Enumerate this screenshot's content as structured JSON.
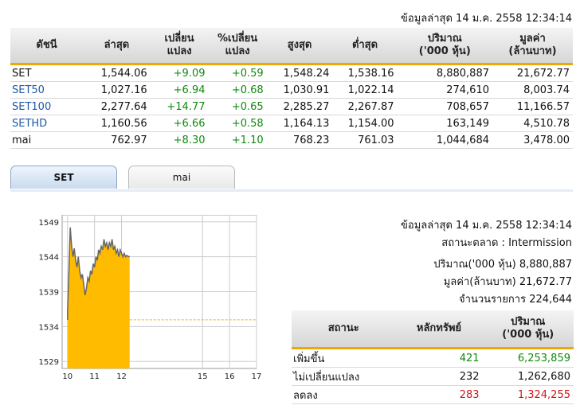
{
  "header": {
    "timestamp": "ข้อมูลล่าสุด 14 ม.ค. 2558 12:34:14"
  },
  "index_table": {
    "columns": [
      [
        "ดัชนี"
      ],
      [
        "ล่าสุด"
      ],
      [
        "เปลี่ยน",
        "แปลง"
      ],
      [
        "%เปลี่ยน",
        "แปลง"
      ],
      [
        "สูงสุด"
      ],
      [
        "ต่ำสุด"
      ],
      [
        "ปริมาณ",
        "('000 หุ้น)"
      ],
      [
        "มูลค่า",
        "(ล้านบาท)"
      ]
    ],
    "rows": [
      {
        "name": "SET",
        "last": "1,544.06",
        "change": "+9.09",
        "pct": "+0.59",
        "high": "1,548.24",
        "low": "1,538.16",
        "volume": "8,880,887",
        "value": "21,672.77"
      },
      {
        "name": "SET50",
        "last": "1,027.16",
        "change": "+6.94",
        "pct": "+0.68",
        "high": "1,030.91",
        "low": "1,022.14",
        "volume": "274,610",
        "value": "8,003.74"
      },
      {
        "name": "SET100",
        "last": "2,277.64",
        "change": "+14.77",
        "pct": "+0.65",
        "high": "2,285.27",
        "low": "2,267.87",
        "volume": "708,657",
        "value": "11,166.57"
      },
      {
        "name": "SETHD",
        "last": "1,160.56",
        "change": "+6.66",
        "pct": "+0.58",
        "high": "1,164.13",
        "low": "1,154.00",
        "volume": "163,149",
        "value": "4,510.78"
      },
      {
        "name": "mai",
        "last": "762.97",
        "change": "+8.30",
        "pct": "+1.10",
        "high": "768.23",
        "low": "761.03",
        "volume": "1,044,684",
        "value": "3,478.00"
      }
    ]
  },
  "tabs": [
    {
      "label": "SET",
      "active": true
    },
    {
      "label": "mai",
      "active": false
    }
  ],
  "info": {
    "timestamp": "ข้อมูลล่าสุด 14 ม.ค. 2558 12:34:14",
    "status_label": "สถานะตลาด :",
    "status_value": "Intermission",
    "volume_label": "ปริมาณ('000 หุ้น)",
    "volume_value": "8,880,887",
    "value_label": "มูลค่า(ล้านบาท)",
    "value_value": "21,672.77",
    "trades_label": "จำนวนรายการ",
    "trades_value": "224,644"
  },
  "breadth_table": {
    "columns": [
      [
        "สถานะ"
      ],
      [
        "หลักทรัพย์"
      ],
      [
        "ปริมาณ",
        "('000 หุ้น)"
      ]
    ],
    "rows": [
      {
        "label": "เพิ่มขึ้น",
        "count": "421",
        "volume": "6,253,859",
        "tone": "up"
      },
      {
        "label": "ไม่เปลี่ยนแปลง",
        "count": "232",
        "volume": "1,262,680",
        "tone": "flat"
      },
      {
        "label": "ลดลง",
        "count": "283",
        "volume": "1,324,255",
        "tone": "down"
      }
    ]
  },
  "chart_data": {
    "type": "area",
    "x_ticks": [
      "10",
      "11",
      "12",
      "15",
      "16",
      "17"
    ],
    "x_tick_hours": [
      10,
      11,
      12,
      15,
      16,
      17
    ],
    "y_ticks": [
      "1529",
      "1534",
      "1539",
      "1544",
      "1549"
    ],
    "y_tick_values": [
      1529,
      1534,
      1539,
      1544,
      1549
    ],
    "xlim": [
      9.8,
      17
    ],
    "ylim": [
      1528,
      1550
    ],
    "previous_close": 1534.97,
    "fill_color": "#ffbb00",
    "line_color": "#666666",
    "reference_color": "#f0b020",
    "points": [
      [
        10.0,
        1534.97
      ],
      [
        10.0,
        1536.0
      ],
      [
        10.05,
        1542.0
      ],
      [
        10.1,
        1548.2
      ],
      [
        10.15,
        1545.5
      ],
      [
        10.2,
        1544.0
      ],
      [
        10.25,
        1545.2
      ],
      [
        10.3,
        1543.5
      ],
      [
        10.35,
        1542.5
      ],
      [
        10.4,
        1544.0
      ],
      [
        10.45,
        1542.0
      ],
      [
        10.5,
        1541.0
      ],
      [
        10.55,
        1541.5
      ],
      [
        10.6,
        1540.0
      ],
      [
        10.65,
        1538.5
      ],
      [
        10.7,
        1539.5
      ],
      [
        10.75,
        1541.0
      ],
      [
        10.8,
        1540.5
      ],
      [
        10.85,
        1542.0
      ],
      [
        10.9,
        1541.5
      ],
      [
        10.95,
        1543.0
      ],
      [
        11.0,
        1542.5
      ],
      [
        11.05,
        1544.0
      ],
      [
        11.1,
        1543.5
      ],
      [
        11.15,
        1545.0
      ],
      [
        11.2,
        1544.5
      ],
      [
        11.25,
        1545.5
      ],
      [
        11.3,
        1545.0
      ],
      [
        11.35,
        1546.5
      ],
      [
        11.4,
        1545.5
      ],
      [
        11.45,
        1546.0
      ],
      [
        11.5,
        1545.0
      ],
      [
        11.55,
        1546.0
      ],
      [
        11.6,
        1545.5
      ],
      [
        11.65,
        1546.5
      ],
      [
        11.7,
        1545.0
      ],
      [
        11.75,
        1545.5
      ],
      [
        11.8,
        1544.5
      ],
      [
        11.85,
        1545.0
      ],
      [
        11.9,
        1544.0
      ],
      [
        11.95,
        1545.0
      ],
      [
        12.0,
        1544.5
      ],
      [
        12.05,
        1544.0
      ],
      [
        12.1,
        1544.5
      ],
      [
        12.15,
        1544.0
      ],
      [
        12.2,
        1544.2
      ],
      [
        12.25,
        1544.0
      ],
      [
        12.3,
        1544.06
      ]
    ]
  }
}
